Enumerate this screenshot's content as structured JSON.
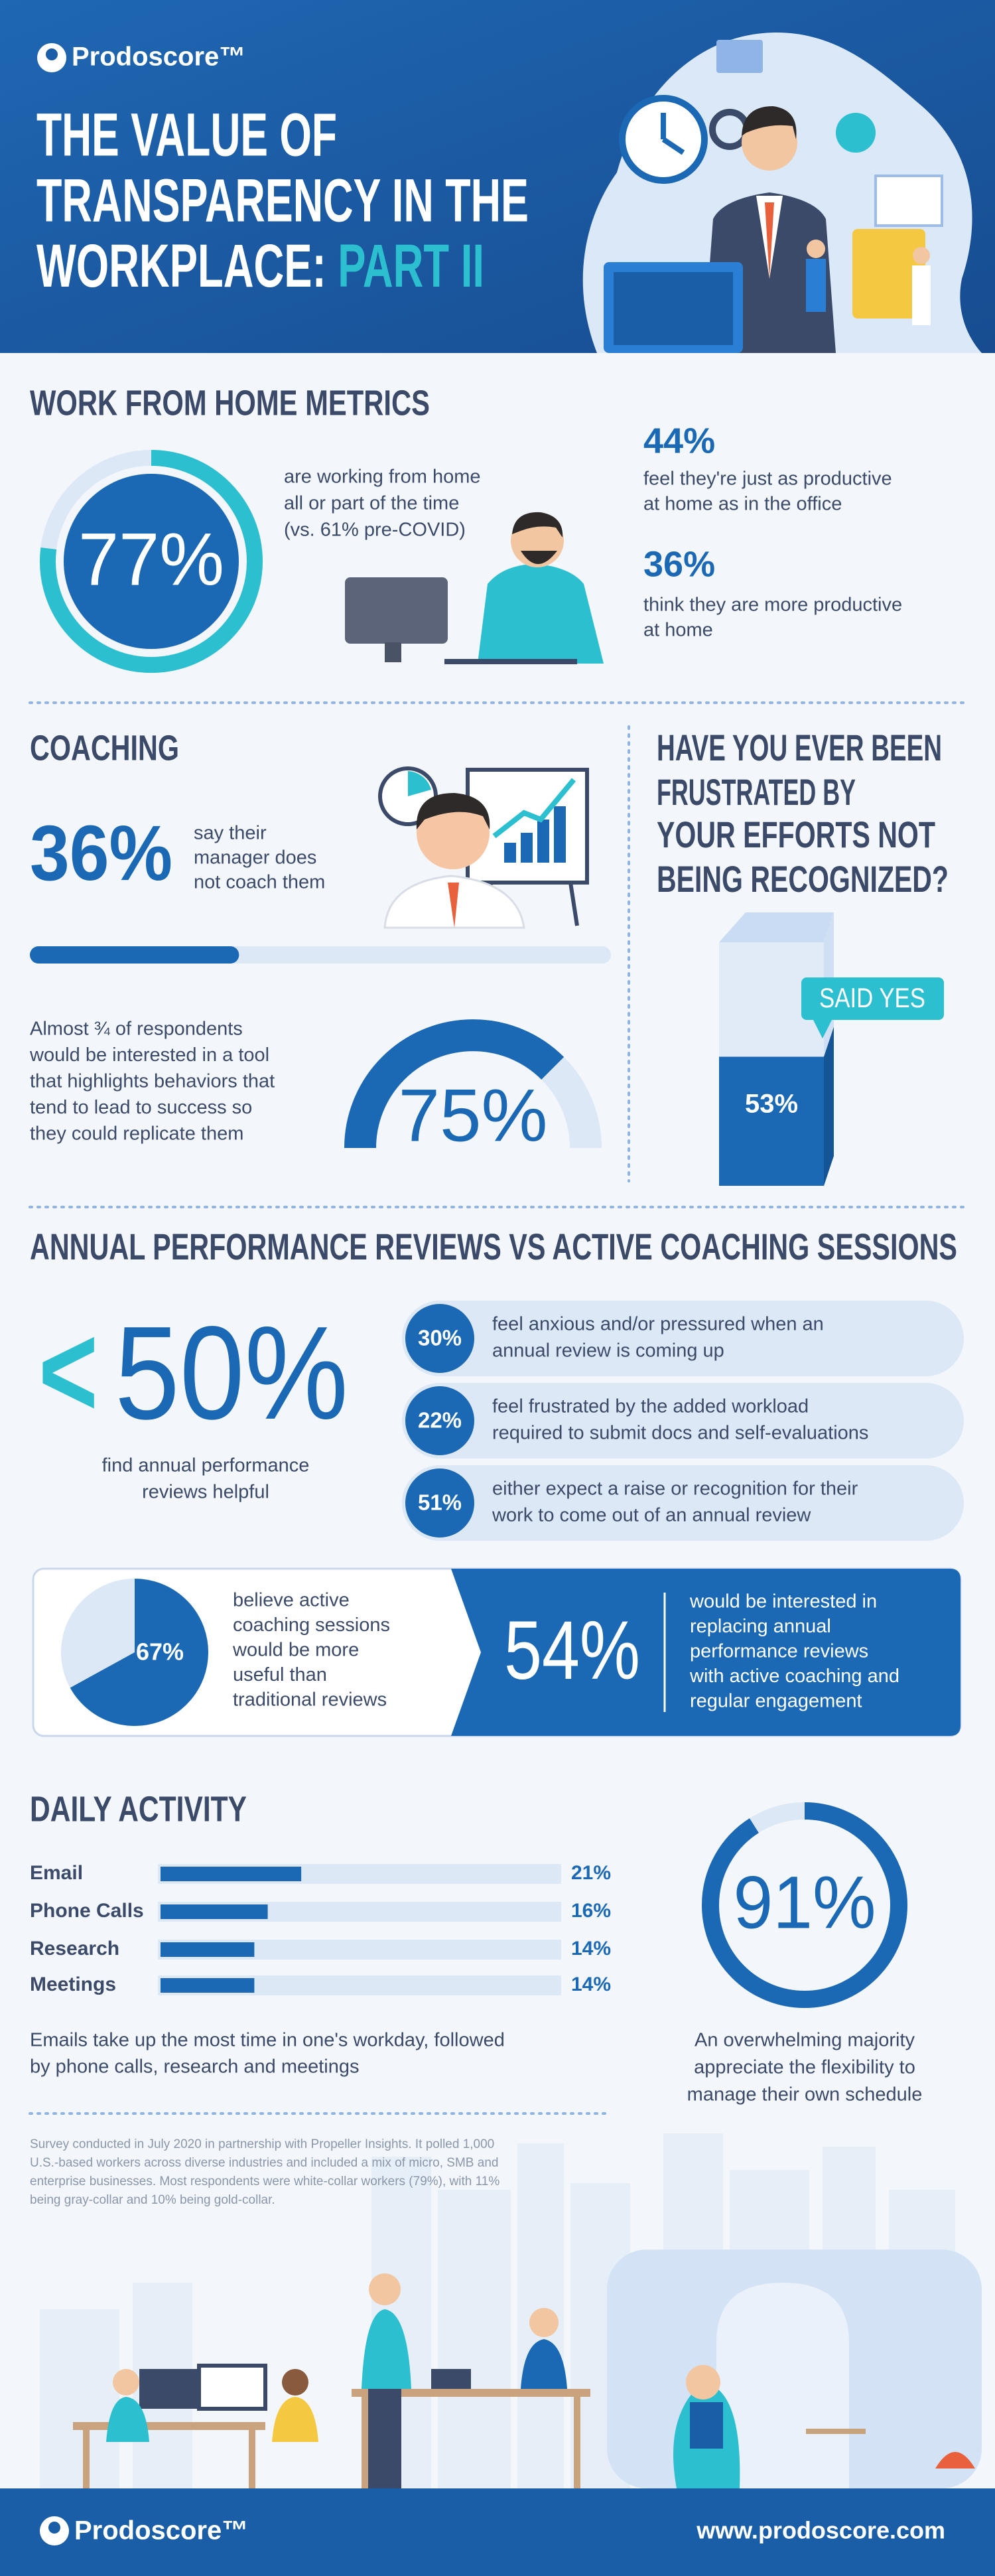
{
  "header": {
    "logo": "Prodoscore™",
    "title_lines": [
      "THE VALUE OF",
      "TRANSPARENCY IN THE",
      "WORKPLACE: "
    ],
    "title_highlight": "PART II"
  },
  "wfh": {
    "title": "WORK FROM HOME METRICS",
    "main": {
      "value": 77,
      "label": "77%",
      "text": [
        "are working from home",
        "all or part of the time",
        "(vs. 61% pre-COVID)"
      ]
    },
    "stats": [
      {
        "label": "44%",
        "text": [
          "feel they're just as productive",
          "at home as in the office"
        ]
      },
      {
        "label": "36%",
        "text": [
          "think they are more productive",
          "at home"
        ]
      }
    ]
  },
  "coaching": {
    "title": "COACHING",
    "stat": {
      "value": 36,
      "label": "36%",
      "text": [
        "say their",
        "manager does",
        "not coach them"
      ]
    },
    "tool": {
      "value": 75,
      "label": "75%",
      "text": [
        "Almost ¾ of respondents",
        "would be interested in a tool",
        "that highlights behaviors that",
        "tend to lead to success so",
        "they could replicate them"
      ]
    }
  },
  "recognition": {
    "title": [
      "HAVE YOU EVER BEEN",
      "FRUSTRATED BY",
      "YOUR EFFORTS NOT",
      "BEING RECOGNIZED?"
    ],
    "tag": "SAID YES",
    "value": 53,
    "label": "53%"
  },
  "reviews": {
    "title": "ANNUAL PERFORMANCE REVIEWS VS ACTIVE COACHING SESSIONS",
    "main": {
      "symbol": "<",
      "label": "50%",
      "text": [
        "find annual performance",
        "reviews helpful"
      ]
    },
    "items": [
      {
        "label": "30%",
        "text": [
          "feel anxious and/or pressured when an",
          "annual review is coming up"
        ]
      },
      {
        "label": "22%",
        "text": [
          "feel frustrated by the added workload",
          "required to submit docs and self-evaluations"
        ]
      },
      {
        "label": "51%",
        "text": [
          "either expect a raise or recognition for their",
          "work to come out of an annual review"
        ]
      }
    ],
    "active": {
      "value": 67,
      "label": "67%",
      "text": [
        "believe active",
        "coaching sessions",
        "would be more",
        "useful than",
        "traditional reviews"
      ]
    },
    "interest": {
      "label": "54%",
      "text": [
        "would be interested in",
        "replacing annual",
        "performance reviews",
        "with active coaching and",
        "regular engagement"
      ]
    }
  },
  "daily": {
    "title": "DAILY ACTIVITY",
    "categories": [
      "Email",
      "Phone Calls",
      "Research",
      "Meetings"
    ],
    "values": [
      21,
      16,
      14,
      14
    ],
    "value_labels": [
      "21%",
      "16%",
      "14%",
      "14%"
    ],
    "text": [
      "Emails take up the most time in one's workday, followed",
      "by phone calls, research and meetings"
    ],
    "flex": {
      "value": 91,
      "label": "91%",
      "text": [
        "An overwhelming majority",
        "appreciate the flexibility to",
        "manage their own schedule"
      ]
    }
  },
  "footnote": [
    "Survey conducted in July 2020 in partnership with Propeller Insights. It polled 1,000",
    "U.S.-based workers across diverse industries and included a mix of micro, SMB and",
    "enterprise businesses. Most respondents were white-collar workers (79%), with 11%",
    "being gray-collar and 10% being gold-collar."
  ],
  "footer": {
    "logo": "Prodoscore™",
    "url": "www.prodoscore.com"
  }
}
